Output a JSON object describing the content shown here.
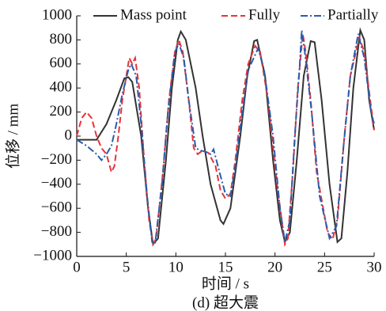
{
  "chart_data": {
    "type": "line",
    "caption": "(d) 超大震",
    "xlabel": "时间 / s",
    "ylabel": "位移 / mm",
    "xlim": [
      0,
      30
    ],
    "xticks": [
      0,
      5,
      10,
      15,
      20,
      25,
      30
    ],
    "ylim": [
      -1000,
      1000
    ],
    "yticks": [
      {
        "value": -1000,
        "label": "−1000"
      },
      {
        "value": -800,
        "label": "−800"
      },
      {
        "value": -600,
        "label": "−600"
      },
      {
        "value": -400,
        "label": "−400"
      },
      {
        "value": -200,
        "label": "−200"
      },
      0,
      200,
      400,
      600,
      800,
      1000
    ],
    "legend": "top",
    "series": [
      {
        "name": "Mass point",
        "color": "#333333",
        "dash": "solid",
        "x": [
          0,
          2,
          3,
          4,
          4.8,
          5.2,
          5.6,
          6.5,
          7.2,
          7.7,
          8.2,
          9,
          9.6,
          10.2,
          10.5,
          11,
          12,
          12.7,
          13.5,
          14.5,
          14.8,
          15.5,
          16.5,
          17.2,
          17.9,
          18.2,
          19,
          19.8,
          20.5,
          21,
          21.5,
          22.2,
          22.9,
          23.6,
          24,
          24.7,
          25.5,
          26.3,
          26.7,
          27.3,
          27.9,
          28.6,
          29,
          29.5,
          30
        ],
        "values": [
          -30,
          -30,
          100,
          300,
          480,
          490,
          450,
          0,
          -600,
          -900,
          -850,
          -200,
          400,
          800,
          870,
          800,
          400,
          0,
          -400,
          -700,
          -730,
          -600,
          0,
          500,
          790,
          800,
          500,
          -200,
          -700,
          -880,
          -800,
          -200,
          500,
          790,
          780,
          300,
          -400,
          -880,
          -850,
          -300,
          400,
          880,
          800,
          300,
          50
        ]
      },
      {
        "name": "Fully",
        "color": "#e8333a",
        "dash": "dashed",
        "x": [
          0,
          0.5,
          1,
          1.5,
          2,
          2.5,
          3,
          3.5,
          3.8,
          4.2,
          4.6,
          5,
          5.3,
          5.6,
          5.9,
          6.3,
          6.8,
          7.3,
          7.7,
          8,
          8.7,
          9.3,
          9.9,
          10.3,
          10.7,
          11.3,
          11.8,
          12.2,
          12.7,
          13.3,
          14,
          14.5,
          15,
          15.5,
          16,
          16.7,
          17.3,
          18,
          18.5,
          19.3,
          20.2,
          21,
          21.3,
          21.8,
          22.3,
          22.8,
          23.1,
          23.6,
          24.2,
          25.3,
          25.8,
          26.3,
          27,
          27.6,
          28.5,
          29,
          29.6,
          30
        ],
        "values": [
          0,
          150,
          200,
          150,
          0,
          -100,
          -150,
          -300,
          -250,
          0,
          300,
          500,
          650,
          600,
          650,
          400,
          -200,
          -700,
          -900,
          -850,
          -300,
          300,
          700,
          800,
          700,
          300,
          -100,
          -150,
          -120,
          -140,
          -250,
          -450,
          -520,
          -480,
          -200,
          300,
          600,
          750,
          700,
          300,
          -400,
          -900,
          -850,
          -300,
          400,
          850,
          700,
          300,
          -300,
          -800,
          -860,
          -700,
          0,
          500,
          820,
          700,
          300,
          50
        ]
      },
      {
        "name": "Partially",
        "color": "#2a5caa",
        "dash": "dashdot",
        "x": [
          0,
          1,
          2,
          2.5,
          3,
          3.5,
          4,
          4.6,
          5.2,
          5.5,
          6,
          6.5,
          7.1,
          7.6,
          7.9,
          8.6,
          9.2,
          9.9,
          10.3,
          10.8,
          11.3,
          12,
          12.5,
          13,
          13.5,
          13.8,
          14.4,
          15,
          15.5,
          16,
          16.7,
          17.3,
          18.3,
          18.9,
          19.8,
          20.5,
          21,
          21.5,
          22,
          22.5,
          22.7,
          23,
          23.7,
          24.5,
          25.5,
          26.2,
          26.9,
          27.6,
          28.4,
          29,
          29.7,
          30
        ],
        "values": [
          -30,
          -80,
          -150,
          -200,
          -150,
          -80,
          100,
          350,
          550,
          600,
          500,
          100,
          -500,
          -880,
          -900,
          -400,
          200,
          700,
          770,
          650,
          300,
          -100,
          -120,
          -130,
          -150,
          -110,
          -300,
          -480,
          -500,
          -250,
          200,
          550,
          730,
          550,
          0,
          -600,
          -880,
          -700,
          0,
          600,
          880,
          700,
          200,
          -500,
          -850,
          -750,
          -100,
          500,
          850,
          650,
          200,
          100
        ]
      }
    ]
  }
}
